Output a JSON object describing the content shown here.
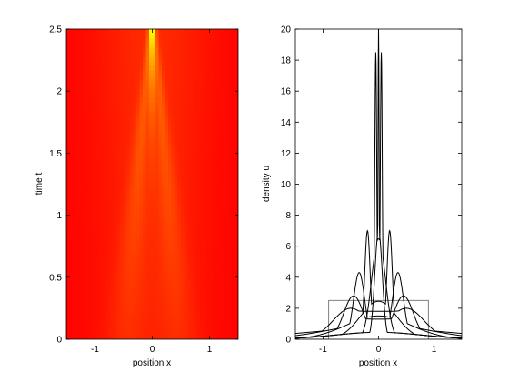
{
  "chart_data": [
    {
      "type": "heatmap",
      "xlabel": "position x",
      "ylabel": "time t",
      "xlim": [
        -1.5,
        1.5
      ],
      "ylim": [
        0,
        2.5
      ],
      "xticks": [
        -1,
        0,
        1
      ],
      "yticks": [
        0,
        0.5,
        1,
        1.5,
        2,
        2.5
      ],
      "xtick_labels": [
        "-1",
        "0",
        "1"
      ],
      "ytick_labels": [
        "0",
        "0.5",
        "1",
        "1.5",
        "2",
        "2.5"
      ],
      "grid": false,
      "colormap": [
        "#ff0000",
        "#ff3300",
        "#ff6600",
        "#ff9900",
        "#ffcc00",
        "#ffff00",
        "#00ff66",
        "#0000ff"
      ]
    },
    {
      "type": "line",
      "xlabel": "position x",
      "ylabel": "density u",
      "xlim": [
        -1.5,
        1.5
      ],
      "ylim": [
        0,
        20
      ],
      "xticks": [
        -1,
        0,
        1
      ],
      "yticks": [
        0,
        2,
        4,
        6,
        8,
        10,
        12,
        14,
        16,
        18,
        20
      ],
      "xtick_labels": [
        "-1",
        "0",
        "1"
      ],
      "ytick_labels": [
        "0",
        "2",
        "4",
        "6",
        "8",
        "10",
        "12",
        "14",
        "16",
        "18",
        "20"
      ],
      "grid": false,
      "initial_condition": {
        "x": [
          -1.5,
          -0.9,
          -0.9,
          0.9,
          0.9,
          1.5
        ],
        "y": [
          0,
          0,
          2.5,
          2.5,
          0,
          0
        ],
        "color": "#808080"
      },
      "series": [
        {
          "peaks_x": [
            -0.5,
            0.5
          ],
          "peak_height": 2.0,
          "center": 1.8,
          "width": 0.45
        },
        {
          "peaks_x": [
            -0.45,
            0.45
          ],
          "peak_height": 2.8,
          "center": 1.3,
          "width": 0.25
        },
        {
          "peaks_x": [
            -0.35,
            0.35
          ],
          "peak_height": 4.3,
          "center": 1.1,
          "width": 0.14
        },
        {
          "peaks_x": [
            -0.2,
            0.2
          ],
          "peak_height": 7.0,
          "center": 1.8,
          "width": 0.07
        },
        {
          "peaks_x": [
            -0.05,
            0.05
          ],
          "peak_height": 18.5,
          "center": 3.0,
          "width": 0.025
        },
        {
          "peaks_x": [
            0.0
          ],
          "peak_height": 20.0,
          "center": 20.0,
          "width": 0.015
        }
      ]
    }
  ]
}
